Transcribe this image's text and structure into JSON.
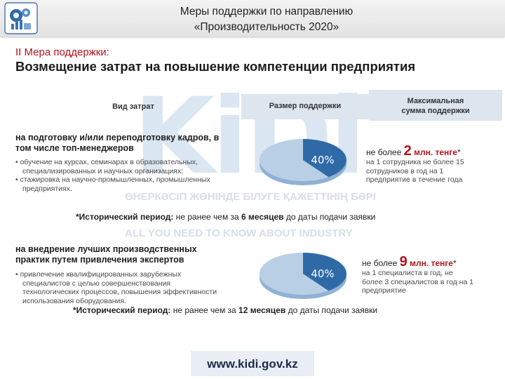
{
  "header": {
    "title_line1": "Меры поддержки по направлению",
    "title_line2": "«Производительность 2020»"
  },
  "section": {
    "label": "II Мера поддержки:",
    "title": "Возмещение затрат на повышение компетенции предприятия"
  },
  "watermark": {
    "logo_text": "KiDi",
    "line1": "ӨНЕРКӘСІП ЖӨНІНДЕ БІЛУГЕ ҚАЖЕТТІНІҢ БӘРІ",
    "line2": "ALL YOU NEED TO KNOW ABOUT INDUSTRY"
  },
  "columns": {
    "type": "Вид затрат",
    "size": "Размер поддержки",
    "max_line1": "Максимальная",
    "max_line2": "сумма поддержки"
  },
  "rows": [
    {
      "head_line1": "на подготовку и/или переподготовку кадров, в",
      "head_line2": "том числе топ-менеджеров",
      "bullet1_line1": "• обучение на курсах, семинарах в образовательных,",
      "bullet1_line2": "специализированных и научных организациях;",
      "bullet2_line1": "• стажировка на научно-промышленных, промышленных",
      "bullet2_line2": "предприятиях.",
      "percent": "40%",
      "share": 0.4,
      "max_prefix": "не более",
      "max_number": "2",
      "max_unit": "млн. тенге",
      "max_star": "*",
      "max_desc_line1": "на 1  сотрудника не более 15",
      "max_desc_line2": "сотрудников в год на 1",
      "max_desc_line3": "предприятие в течение года",
      "hist_label": "*Исторический период:",
      "hist_text_a": " не ранее чем за ",
      "hist_num": "6 месяцев",
      "hist_text_b": " до даты подачи заявки"
    },
    {
      "head_line1": "на  внедрение  лучших  производственных",
      "head_line2": "практик путем привлечения экспертов",
      "bullet1_line1": "• привлечение        квалифицированных        зарубежных",
      "bullet1_line2": "специалистов        с        целью        совершенствования",
      "bullet1_line3": "технологических процессов, повышения эффективности",
      "bullet1_line4": "использования оборудования.",
      "percent": "40%",
      "share": 0.4,
      "max_prefix": "не более",
      "max_number": "9",
      "max_unit": "млн. тенге",
      "max_star": "*",
      "max_desc_line1": "на 1  специалиста в год, не",
      "max_desc_line2": "более 3 специалистов в год на 1",
      "max_desc_line3": "предприятие",
      "hist_label": "*Исторический период:",
      "hist_text_a": " не ранее чем за ",
      "hist_num": "12 месяцев",
      "hist_text_b": " до даты подачи заявки"
    }
  ],
  "footer": {
    "url": "www.kidi.gov.kz"
  },
  "colors": {
    "accent_red": "#b1121b",
    "pie_light": "#b9cfe5",
    "pie_dark": "#2f6aa7"
  }
}
